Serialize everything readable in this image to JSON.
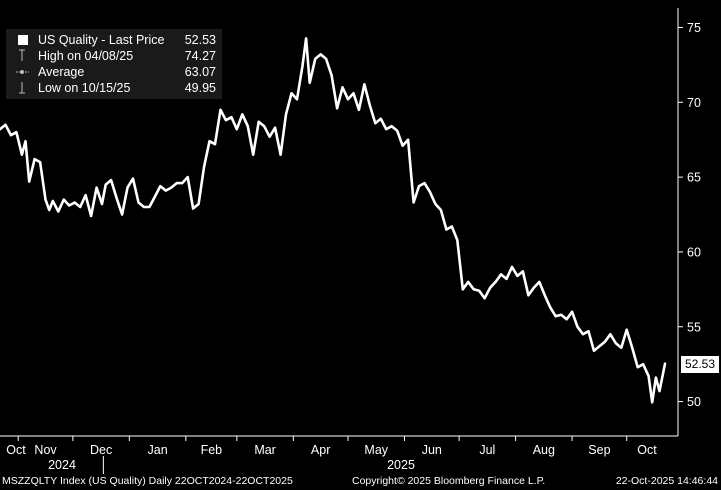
{
  "legend": {
    "title": "US Quality - Last Price",
    "last_value": "52.53",
    "high_label": "High on 04/08/25",
    "high_value": "74.27",
    "avg_label": "Average",
    "avg_value": "63.07",
    "low_label": "Low on 10/15/25",
    "low_value": "49.95"
  },
  "footer": {
    "left": "MSZZQLTY Index (US Quality) Daily 22OCT2024-22OCT2025",
    "center": "Copyright© 2025 Bloomberg Finance L.P.",
    "right": "22-Oct-2025 14:46:44"
  },
  "colors": {
    "background": "#000000",
    "line": "#ffffff",
    "legend_bg": "#1a1a1a"
  },
  "chart_data": {
    "type": "line",
    "title": "",
    "xlabel": "",
    "ylabel": "",
    "ylim": [
      47.7,
      76.3
    ],
    "xlim": [
      "2024-10-22",
      "2025-10-22"
    ],
    "y_ticks": [
      "75",
      "70",
      "65",
      "60",
      "55",
      "50"
    ],
    "x_month_labels": [
      "Oct",
      "Nov",
      "Dec",
      "Jan",
      "Feb",
      "Mar",
      "Apr",
      "May",
      "Jun",
      "Jul",
      "Aug",
      "Sep",
      "Oct"
    ],
    "x_year_labels": [
      "2024",
      "2025"
    ],
    "last_price_label": "52.53",
    "grid": false,
    "legend_position": "top-left",
    "series": [
      {
        "name": "US Quality - Last Price",
        "x": [
          "2024-10-22",
          "2024-10-25",
          "2024-10-28",
          "2024-10-31",
          "2024-11-03",
          "2024-11-05",
          "2024-11-07",
          "2024-11-10",
          "2024-11-13",
          "2024-11-16",
          "2024-11-18",
          "2024-11-20",
          "2024-11-23",
          "2024-11-26",
          "2024-11-29",
          "2024-12-02",
          "2024-12-05",
          "2024-12-08",
          "2024-12-11",
          "2024-12-14",
          "2024-12-17",
          "2024-12-19",
          "2024-12-22",
          "2024-12-25",
          "2024-12-28",
          "2024-12-31",
          "2025-01-03",
          "2025-01-06",
          "2025-01-09",
          "2025-01-12",
          "2025-01-15",
          "2025-01-18",
          "2025-01-21",
          "2025-01-24",
          "2025-01-27",
          "2025-01-30",
          "2025-02-02",
          "2025-02-05",
          "2025-02-08",
          "2025-02-11",
          "2025-02-14",
          "2025-02-17",
          "2025-02-20",
          "2025-02-23",
          "2025-02-26",
          "2025-03-01",
          "2025-03-04",
          "2025-03-07",
          "2025-03-10",
          "2025-03-13",
          "2025-03-16",
          "2025-03-19",
          "2025-03-22",
          "2025-03-25",
          "2025-03-28",
          "2025-03-31",
          "2025-04-03",
          "2025-04-06",
          "2025-04-08",
          "2025-04-10",
          "2025-04-13",
          "2025-04-16",
          "2025-04-19",
          "2025-04-22",
          "2025-04-25",
          "2025-04-28",
          "2025-05-01",
          "2025-05-04",
          "2025-05-07",
          "2025-05-10",
          "2025-05-13",
          "2025-05-16",
          "2025-05-19",
          "2025-05-22",
          "2025-05-25",
          "2025-05-28",
          "2025-05-31",
          "2025-06-03",
          "2025-06-06",
          "2025-06-09",
          "2025-06-12",
          "2025-06-15",
          "2025-06-18",
          "2025-06-21",
          "2025-06-24",
          "2025-06-27",
          "2025-06-30",
          "2025-07-03",
          "2025-07-06",
          "2025-07-09",
          "2025-07-12",
          "2025-07-15",
          "2025-07-18",
          "2025-07-21",
          "2025-07-24",
          "2025-07-27",
          "2025-07-30",
          "2025-08-02",
          "2025-08-05",
          "2025-08-08",
          "2025-08-11",
          "2025-08-14",
          "2025-08-17",
          "2025-08-20",
          "2025-08-23",
          "2025-08-26",
          "2025-08-29",
          "2025-09-01",
          "2025-09-04",
          "2025-09-07",
          "2025-09-10",
          "2025-09-13",
          "2025-09-16",
          "2025-09-19",
          "2025-09-22",
          "2025-09-25",
          "2025-09-28",
          "2025-10-01",
          "2025-10-04",
          "2025-10-07",
          "2025-10-10",
          "2025-10-13",
          "2025-10-15",
          "2025-10-17",
          "2025-10-19",
          "2025-10-22"
        ],
        "y": [
          68.2,
          68.5,
          67.8,
          68.0,
          66.5,
          67.4,
          64.7,
          66.2,
          66.0,
          63.5,
          62.8,
          63.4,
          62.7,
          63.5,
          63.1,
          63.3,
          63.0,
          63.8,
          62.4,
          64.3,
          63.2,
          64.5,
          64.8,
          63.6,
          62.5,
          64.3,
          64.9,
          63.3,
          63.0,
          63.0,
          63.7,
          64.4,
          64.1,
          64.3,
          64.6,
          64.6,
          65.0,
          62.9,
          63.2,
          65.7,
          67.4,
          67.2,
          69.5,
          68.8,
          69.0,
          68.2,
          69.2,
          68.4,
          66.5,
          68.7,
          68.4,
          67.7,
          68.3,
          66.5,
          69.2,
          70.6,
          70.2,
          72.4,
          74.27,
          71.3,
          72.9,
          73.2,
          72.9,
          71.8,
          69.6,
          71.0,
          70.2,
          70.6,
          69.5,
          71.2,
          69.8,
          68.6,
          68.9,
          68.2,
          68.4,
          68.1,
          67.1,
          67.5,
          63.3,
          64.4,
          64.6,
          64.0,
          63.2,
          62.8,
          61.5,
          61.7,
          60.8,
          57.5,
          58.0,
          57.5,
          57.4,
          56.9,
          57.6,
          58.0,
          58.5,
          58.2,
          59.0,
          58.4,
          58.7,
          57.1,
          57.6,
          58.0,
          57.1,
          56.3,
          55.7,
          55.8,
          55.5,
          56.0,
          55.0,
          54.5,
          54.7,
          53.4,
          53.7,
          54.0,
          54.5,
          53.9,
          53.6,
          54.8,
          53.6,
          52.3,
          52.5,
          51.7,
          49.95,
          51.6,
          50.7,
          52.53
        ]
      }
    ]
  }
}
